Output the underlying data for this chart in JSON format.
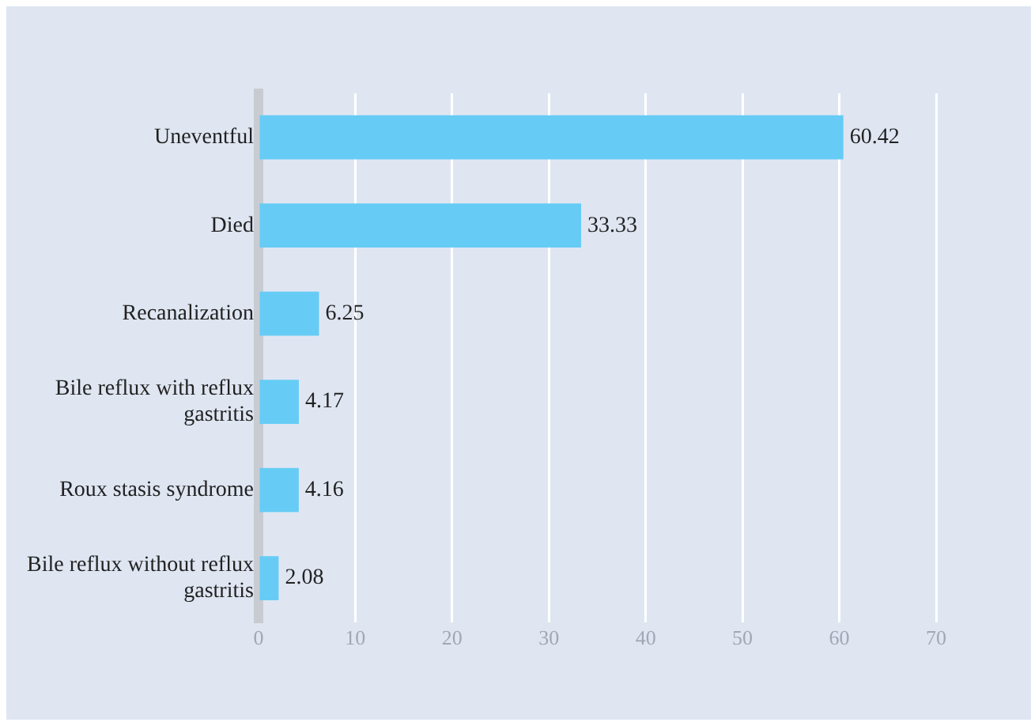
{
  "chart_data": {
    "type": "bar",
    "orientation": "horizontal",
    "categories": [
      "Uneventful",
      "Died",
      "Recanalization",
      "Bile reflux with reflux gastritis",
      "Roux stasis syndrome",
      "Bile reflux without reflux gastritis"
    ],
    "values": [
      60.42,
      33.33,
      6.25,
      4.17,
      4.16,
      2.08
    ],
    "color": "#66ccf5",
    "xlim": [
      0,
      70
    ],
    "xticks": [
      0,
      10,
      20,
      30,
      40,
      50,
      60,
      70
    ],
    "grid": "x",
    "data_labels": true
  }
}
